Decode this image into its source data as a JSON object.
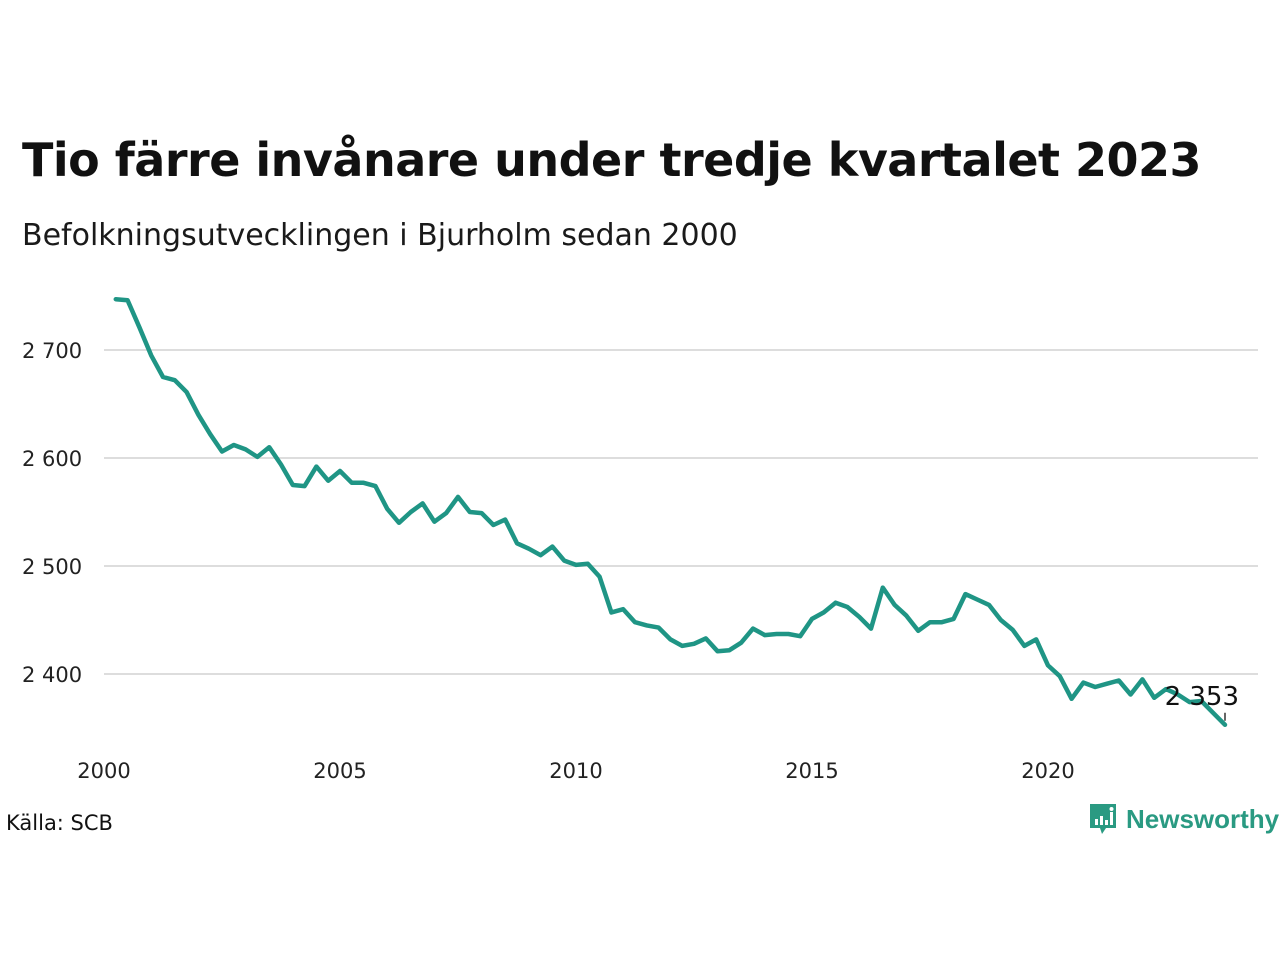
{
  "title": "Tio färre invånare under tredje kvartalet 2023",
  "subtitle": "Befolkningsutvecklingen i Bjurholm sedan 2000",
  "source": "Källa: SCB",
  "brand": {
    "name": "Newsworthy",
    "icon": "newsworthy-logo-icon",
    "color": "#2a9a82"
  },
  "chart_data": {
    "type": "line",
    "title": "Tio färre invånare under tredje kvartalet 2023",
    "subtitle": "Befolkningsutvecklingen i Bjurholm sedan 2000",
    "xlabel": "",
    "ylabel": "",
    "x_ticks": [
      2000,
      2005,
      2010,
      2015,
      2020
    ],
    "y_ticks": [
      2400,
      2500,
      2600,
      2700
    ],
    "y_tick_labels": [
      "2 400",
      "2 500",
      "2 600",
      "2 700"
    ],
    "xlim": [
      2000,
      2024
    ],
    "ylim": [
      2345,
      2770
    ],
    "grid": "horizontal",
    "line_color": "#1f9585",
    "grid_color": "#dddddd",
    "end_label": "2 353",
    "series": [
      {
        "x": [
          2000.25,
          2000.5,
          2000.75,
          2001.0,
          2001.25,
          2001.5,
          2001.75,
          2002.0,
          2002.25,
          2002.5,
          2002.75,
          2003.0,
          2003.25,
          2003.5,
          2003.75,
          2004.0,
          2004.25,
          2004.5,
          2004.75,
          2005.0,
          2005.25,
          2005.5,
          2005.75,
          2006.0,
          2006.25,
          2006.5,
          2006.75,
          2007.0,
          2007.25,
          2007.5,
          2007.75,
          2008.0,
          2008.25,
          2008.5,
          2008.75,
          2009.0,
          2009.25,
          2009.5,
          2009.75,
          2010.0,
          2010.25,
          2010.5,
          2010.75,
          2011.0,
          2011.25,
          2011.5,
          2011.75,
          2012.0,
          2012.25,
          2012.5,
          2012.75,
          2013.0,
          2013.25,
          2013.5,
          2013.75,
          2014.0,
          2014.25,
          2014.5,
          2014.75,
          2015.0,
          2015.25,
          2015.5,
          2015.75,
          2016.0,
          2016.25,
          2016.5,
          2016.75,
          2017.0,
          2017.25,
          2017.5,
          2017.75,
          2018.0,
          2018.25,
          2018.5,
          2018.75,
          2019.0,
          2019.25,
          2019.5,
          2019.75,
          2020.0,
          2020.25,
          2020.5,
          2020.75,
          2021.0,
          2021.25,
          2021.5,
          2021.75,
          2022.0,
          2022.25,
          2022.5,
          2022.75,
          2023.0,
          2023.25,
          2023.5,
          2023.75
        ],
        "values": [
          2747,
          2746,
          2721,
          2695,
          2675,
          2672,
          2661,
          2640,
          2622,
          2606,
          2612,
          2608,
          2601,
          2610,
          2594,
          2575,
          2574,
          2592,
          2579,
          2588,
          2577,
          2577,
          2574,
          2553,
          2540,
          2550,
          2558,
          2541,
          2549,
          2564,
          2550,
          2549,
          2538,
          2543,
          2521,
          2516,
          2510,
          2518,
          2505,
          2501,
          2502,
          2490,
          2457,
          2460,
          2448,
          2445,
          2443,
          2432,
          2426,
          2428,
          2433,
          2421,
          2422,
          2429,
          2442,
          2436,
          2437,
          2437,
          2435,
          2451,
          2457,
          2466,
          2462,
          2453,
          2442,
          2480,
          2464,
          2454,
          2440,
          2448,
          2448,
          2451,
          2474,
          2469,
          2464,
          2450,
          2441,
          2426,
          2432,
          2408,
          2398,
          2377,
          2392,
          2388,
          2391,
          2394,
          2381,
          2395,
          2378,
          2386,
          2381,
          2374,
          2375,
          2364,
          2353
        ]
      }
    ]
  }
}
